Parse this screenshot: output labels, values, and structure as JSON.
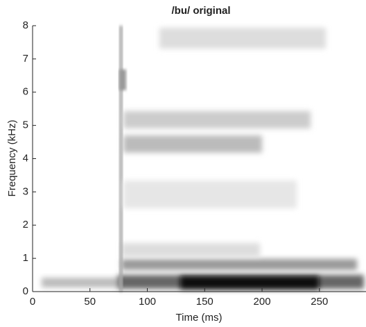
{
  "chart_data": {
    "type": "spectrogram",
    "title": "/bu/ original",
    "x_label": "Time (ms)",
    "y_label": "Frequency (kHz)",
    "xlim": [
      0,
      290
    ],
    "xticks": [
      0,
      50,
      100,
      150,
      200,
      250
    ],
    "ylim": [
      0,
      8
    ],
    "yticks": [
      0,
      1,
      2,
      3,
      4,
      5,
      6,
      7,
      8
    ]
  }
}
